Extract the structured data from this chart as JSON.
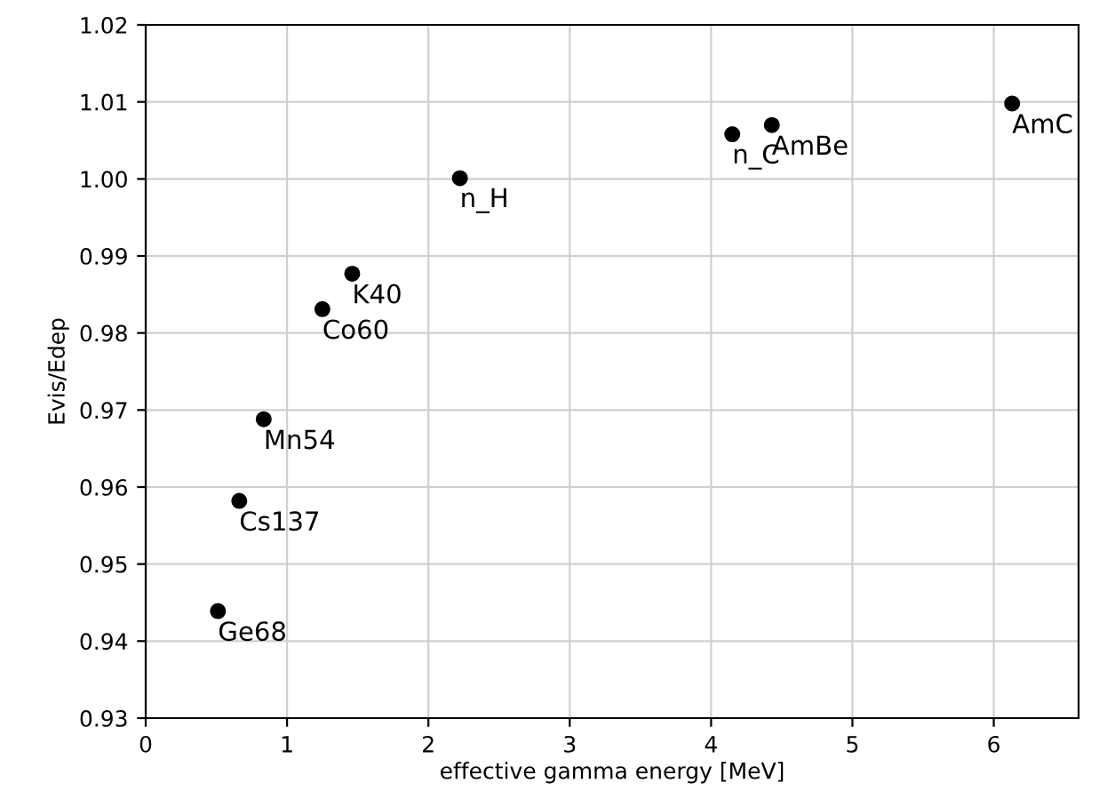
{
  "chart_data": {
    "type": "scatter",
    "xlabel": "effective gamma energy [MeV]",
    "ylabel": "Evis/Edep",
    "x": [
      0.511,
      0.662,
      0.835,
      1.25,
      1.461,
      2.223,
      4.15,
      4.43,
      6.13
    ],
    "values": [
      0.9439,
      0.9582,
      0.9688,
      0.9831,
      0.9877,
      1.0001,
      1.0058,
      1.007,
      1.0098
    ],
    "color": "#000000",
    "marker": "circle",
    "grid": true,
    "xlim": [
      0,
      6.6
    ],
    "xticks": [
      0,
      1,
      2,
      3,
      4,
      5,
      6
    ],
    "ylim": [
      0.93,
      1.02
    ],
    "yticks": [
      {
        "value": 0.93,
        "label": "0.93"
      },
      {
        "value": 0.94,
        "label": "0.94"
      },
      {
        "value": 0.95,
        "label": "0.95"
      },
      {
        "value": 0.96,
        "label": "0.96"
      },
      {
        "value": 0.97,
        "label": "0.97"
      },
      {
        "value": 0.98,
        "label": "0.98"
      },
      {
        "value": 0.99,
        "label": "0.99"
      },
      {
        "value": 1.0,
        "label": "1.00"
      },
      {
        "value": 1.01,
        "label": "1.01"
      },
      {
        "value": 1.02,
        "label": "1.02"
      }
    ],
    "annotations": [
      {
        "text": "Ge68",
        "x": 0.511,
        "y": 0.9439
      },
      {
        "text": "Cs137",
        "x": 0.662,
        "y": 0.9582
      },
      {
        "text": "Mn54",
        "x": 0.835,
        "y": 0.9688
      },
      {
        "text": "Co60",
        "x": 1.25,
        "y": 0.9831
      },
      {
        "text": "K40",
        "x": 1.461,
        "y": 0.9877
      },
      {
        "text": "n_H",
        "x": 2.223,
        "y": 1.0001
      },
      {
        "text": "n_C",
        "x": 4.15,
        "y": 1.0058
      },
      {
        "text": "AmBe",
        "x": 4.43,
        "y": 1.007
      },
      {
        "text": "AmC",
        "x": 6.13,
        "y": 1.0098
      }
    ]
  }
}
